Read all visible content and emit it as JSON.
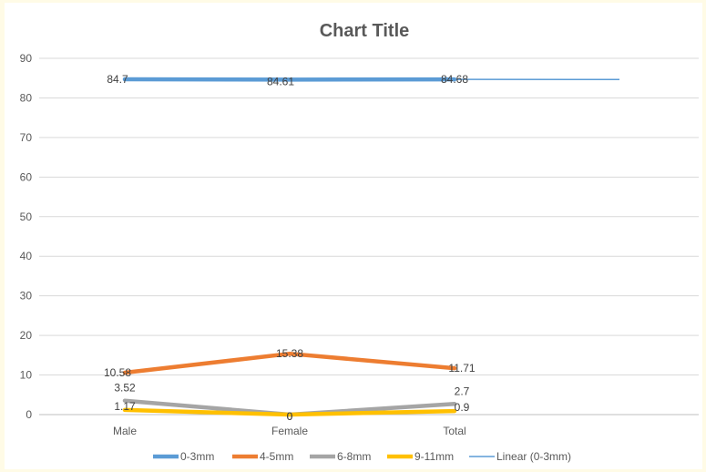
{
  "chart_data": {
    "type": "line",
    "title": "Chart Title",
    "xlabel": "",
    "ylabel": "",
    "categories": [
      "Male",
      "Female",
      "Total"
    ],
    "ylim": [
      0,
      90
    ],
    "yticks": [
      0,
      10,
      20,
      30,
      40,
      50,
      60,
      70,
      80,
      90
    ],
    "grid": true,
    "legend_position": "bottom",
    "series": [
      {
        "name": "0-3mm",
        "values": [
          84.7,
          84.61,
          84.68
        ],
        "labels": [
          "84.7",
          "84.61",
          "84.68"
        ],
        "color": "#5b9bd5"
      },
      {
        "name": "4-5mm",
        "values": [
          10.58,
          15.38,
          11.71
        ],
        "labels": [
          "10.58",
          "15.38",
          "11.71"
        ],
        "color": "#ed7d31"
      },
      {
        "name": "6-8mm",
        "values": [
          3.52,
          0,
          2.7
        ],
        "labels": [
          "3.52",
          "0",
          "2.7"
        ],
        "color": "#a5a5a5"
      },
      {
        "name": "9-11mm",
        "values": [
          1.17,
          0,
          0.9
        ],
        "labels": [
          "1.17",
          "0",
          "0.9"
        ],
        "color": "#ffc000"
      }
    ],
    "trendline": {
      "name": "Linear (0-3mm)",
      "values": [
        84.7,
        84.68,
        84.67,
        84.65
      ],
      "color": "#5b9bd5"
    }
  }
}
